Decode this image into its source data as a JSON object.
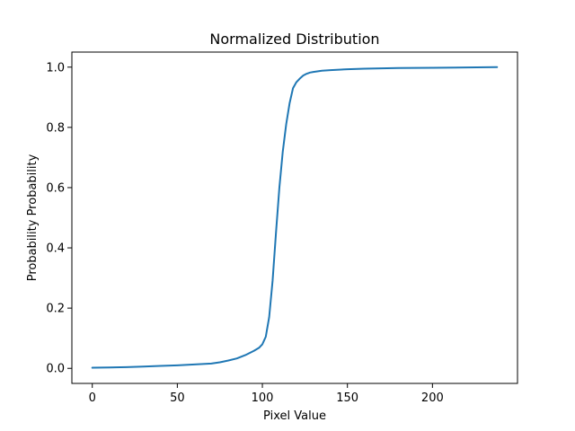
{
  "chart_data": {
    "type": "line",
    "title": "Normalized Distribution",
    "xlabel": "Pixel Value",
    "ylabel": "Probability Probability",
    "xlim": [
      -12,
      250
    ],
    "ylim": [
      -0.05,
      1.05
    ],
    "xticks": [
      0,
      50,
      100,
      150,
      200
    ],
    "yticks": [
      0.0,
      0.2,
      0.4,
      0.6,
      0.8,
      1.0
    ],
    "xtick_labels": [
      "0",
      "50",
      "100",
      "150",
      "200"
    ],
    "ytick_labels": [
      "0.0",
      "0.2",
      "0.4",
      "0.6",
      "0.8",
      "1.0"
    ],
    "grid": false,
    "series": [
      {
        "color": "#1f77b4",
        "x": [
          0,
          10,
          20,
          30,
          40,
          50,
          60,
          70,
          75,
          80,
          85,
          90,
          95,
          98,
          100,
          102,
          104,
          106,
          108,
          110,
          112,
          114,
          116,
          118,
          120,
          122,
          124,
          126,
          128,
          130,
          135,
          140,
          150,
          160,
          170,
          180,
          200,
          220,
          238
        ],
        "y": [
          0.002,
          0.003,
          0.004,
          0.006,
          0.008,
          0.01,
          0.013,
          0.016,
          0.02,
          0.026,
          0.033,
          0.044,
          0.058,
          0.068,
          0.08,
          0.105,
          0.17,
          0.29,
          0.45,
          0.6,
          0.72,
          0.81,
          0.88,
          0.93,
          0.95,
          0.962,
          0.972,
          0.978,
          0.982,
          0.984,
          0.988,
          0.99,
          0.993,
          0.995,
          0.996,
          0.997,
          0.998,
          0.999,
          1.0
        ]
      }
    ]
  }
}
